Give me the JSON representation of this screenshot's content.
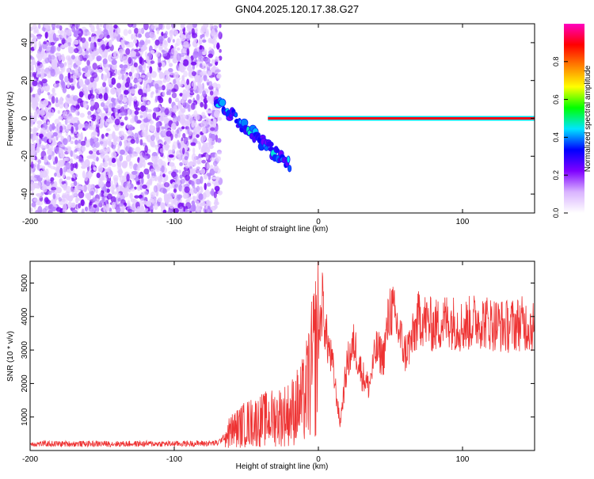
{
  "title": "GN04.2025.120.17.38.G27",
  "chart_data": [
    {
      "type": "heatmap",
      "xlabel": "Height of straight line (km)",
      "ylabel": "Frequency (Hz)",
      "xlim": [
        -200,
        150
      ],
      "ylim": [
        -50,
        50
      ],
      "x_ticks": [
        "-200",
        "-100",
        "0",
        "100"
      ],
      "y_ticks": [
        "-40",
        "-20",
        "0",
        "20",
        "40"
      ],
      "colorbar": {
        "label": "Normalized spectral amplitude",
        "range": [
          0,
          1
        ],
        "ticks": [
          "0.0",
          "0.2",
          "0.4",
          "0.6",
          "0.8"
        ],
        "colors": [
          "#ffffff",
          "#d9b3ff",
          "#7f00ff",
          "#0000ff",
          "#00e5ff",
          "#00ff00",
          "#ffff00",
          "#ff8000",
          "#ff0000",
          "#ff00c0"
        ]
      },
      "regions": [
        {
          "feature": "broadband noise",
          "x": [
            -200,
            -68
          ],
          "f": [
            -50,
            50
          ],
          "amplitude": 0.1
        },
        {
          "feature": "descending trace",
          "x": [
            -70,
            -20
          ],
          "f_start": 8,
          "f_end": -25,
          "amplitude": 0.35
        },
        {
          "feature": "carrier line",
          "x": [
            -35,
            150
          ],
          "f": 0,
          "amplitude": 0.9
        }
      ]
    },
    {
      "type": "line",
      "xlabel": "Height of straight line (km)",
      "ylabel": "SNR (10 * v/v)",
      "xlim": [
        -200,
        150
      ],
      "ylim": [
        0,
        5650
      ],
      "x_ticks": [
        "-200",
        "-100",
        "0",
        "100"
      ],
      "y_ticks": [
        "1000",
        "2000",
        "3000",
        "4000",
        "5000"
      ],
      "color": "#ee3333",
      "envelope": {
        "x": [
          -200,
          -150,
          -100,
          -70,
          -60,
          -50,
          -40,
          -30,
          -20,
          -10,
          -5,
          0,
          3,
          5,
          10,
          15,
          20,
          25,
          30,
          35,
          40,
          45,
          50,
          55,
          60,
          65,
          70,
          80,
          90,
          100,
          110,
          120,
          130,
          140,
          150
        ],
        "mean": [
          200,
          200,
          200,
          220,
          600,
          800,
          900,
          1000,
          1100,
          1500,
          2300,
          3300,
          4500,
          3500,
          2500,
          800,
          2600,
          3200,
          2300,
          1900,
          3000,
          2800,
          4300,
          3700,
          2900,
          3300,
          4000,
          3700,
          3900,
          3700,
          3900,
          3800,
          3700,
          3800,
          3700
        ]
      }
    }
  ]
}
